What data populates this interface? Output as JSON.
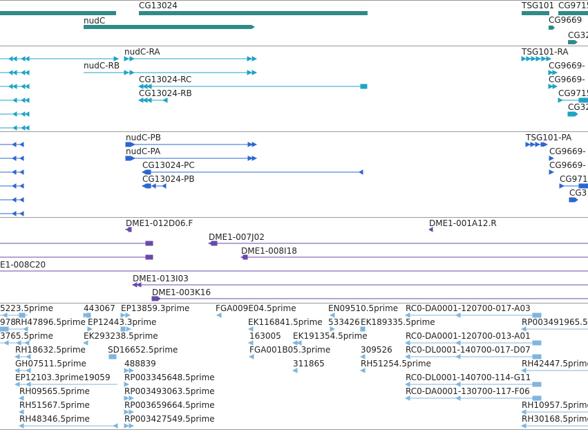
{
  "colors": {
    "gene": "#2f8b88",
    "transcript": "#1fa3c6",
    "protein": "#2c67d1",
    "clone": "#6a4aa8",
    "est": "#7fb6de",
    "separator": "#9a9a9a",
    "text": "#222222"
  },
  "tracks": {
    "genes": {
      "labels": [
        "CG13024",
        "TSG101",
        "CG9715",
        "nudC",
        "CG9669",
        "CG32"
      ]
    },
    "transcripts": {
      "labels": [
        "nudC-RA",
        "TSG101-RA",
        "nudC-RB",
        "CG9669-",
        "CG13024-RC",
        "CG9669-",
        "CG13024-RB",
        "CG9715",
        "CG32"
      ]
    },
    "proteins": {
      "labels": [
        "nudC-PB",
        "TSG101-PA",
        "nudC-PA",
        "CG9669-",
        "CG13024-PC",
        "CG9669-",
        "CG13024-PB",
        "CG971",
        "CG3"
      ]
    },
    "clones": {
      "labels": [
        "DME1-012D06.F",
        "DME1-001A12.R",
        "DME1-007J02",
        "DME1-008I18",
        "E1-008C20",
        "DME1-013I03",
        "DME1-003K16"
      ]
    },
    "ests": {
      "labels": [
        "5223.5prime",
        "443067",
        "EP13859.3prime",
        "FGA009E04.5prime",
        "EN09510.5prime",
        "RC0-DA0001-120700-017-A03",
        "978",
        "RH47896.5prime",
        "EP12443.3prime",
        "EK116841.5prime",
        "533426",
        "EK189335.5prime",
        "RP003491965.5",
        "3765.5prime",
        "EK293238.5prime",
        "163005",
        "EK191354.5prime",
        "RC0-DA0001-120700-013-A01",
        "RH18632.5prime",
        "SD16652.5prime",
        "FGA001B05.3prime",
        "309526",
        "RC0-DL0001-140700-017-D07",
        "GH07511.5prime",
        "488839",
        "311865",
        "RH51254.5prime",
        "RH42447.5prime",
        "EP12103.3prime19059",
        "RP003345648.5prime",
        "RC0-DL0001-140700-114-G11",
        "RH09565.5prime",
        "RP003493063.5prime",
        "RC0-DA0001-130700-117-F06",
        "RH51567.5prime",
        "RP003659664.5prime",
        "RH10957.5prime",
        "RH48346.5prime",
        "RP003427549.5prime",
        "RH30168.5prime"
      ]
    }
  }
}
